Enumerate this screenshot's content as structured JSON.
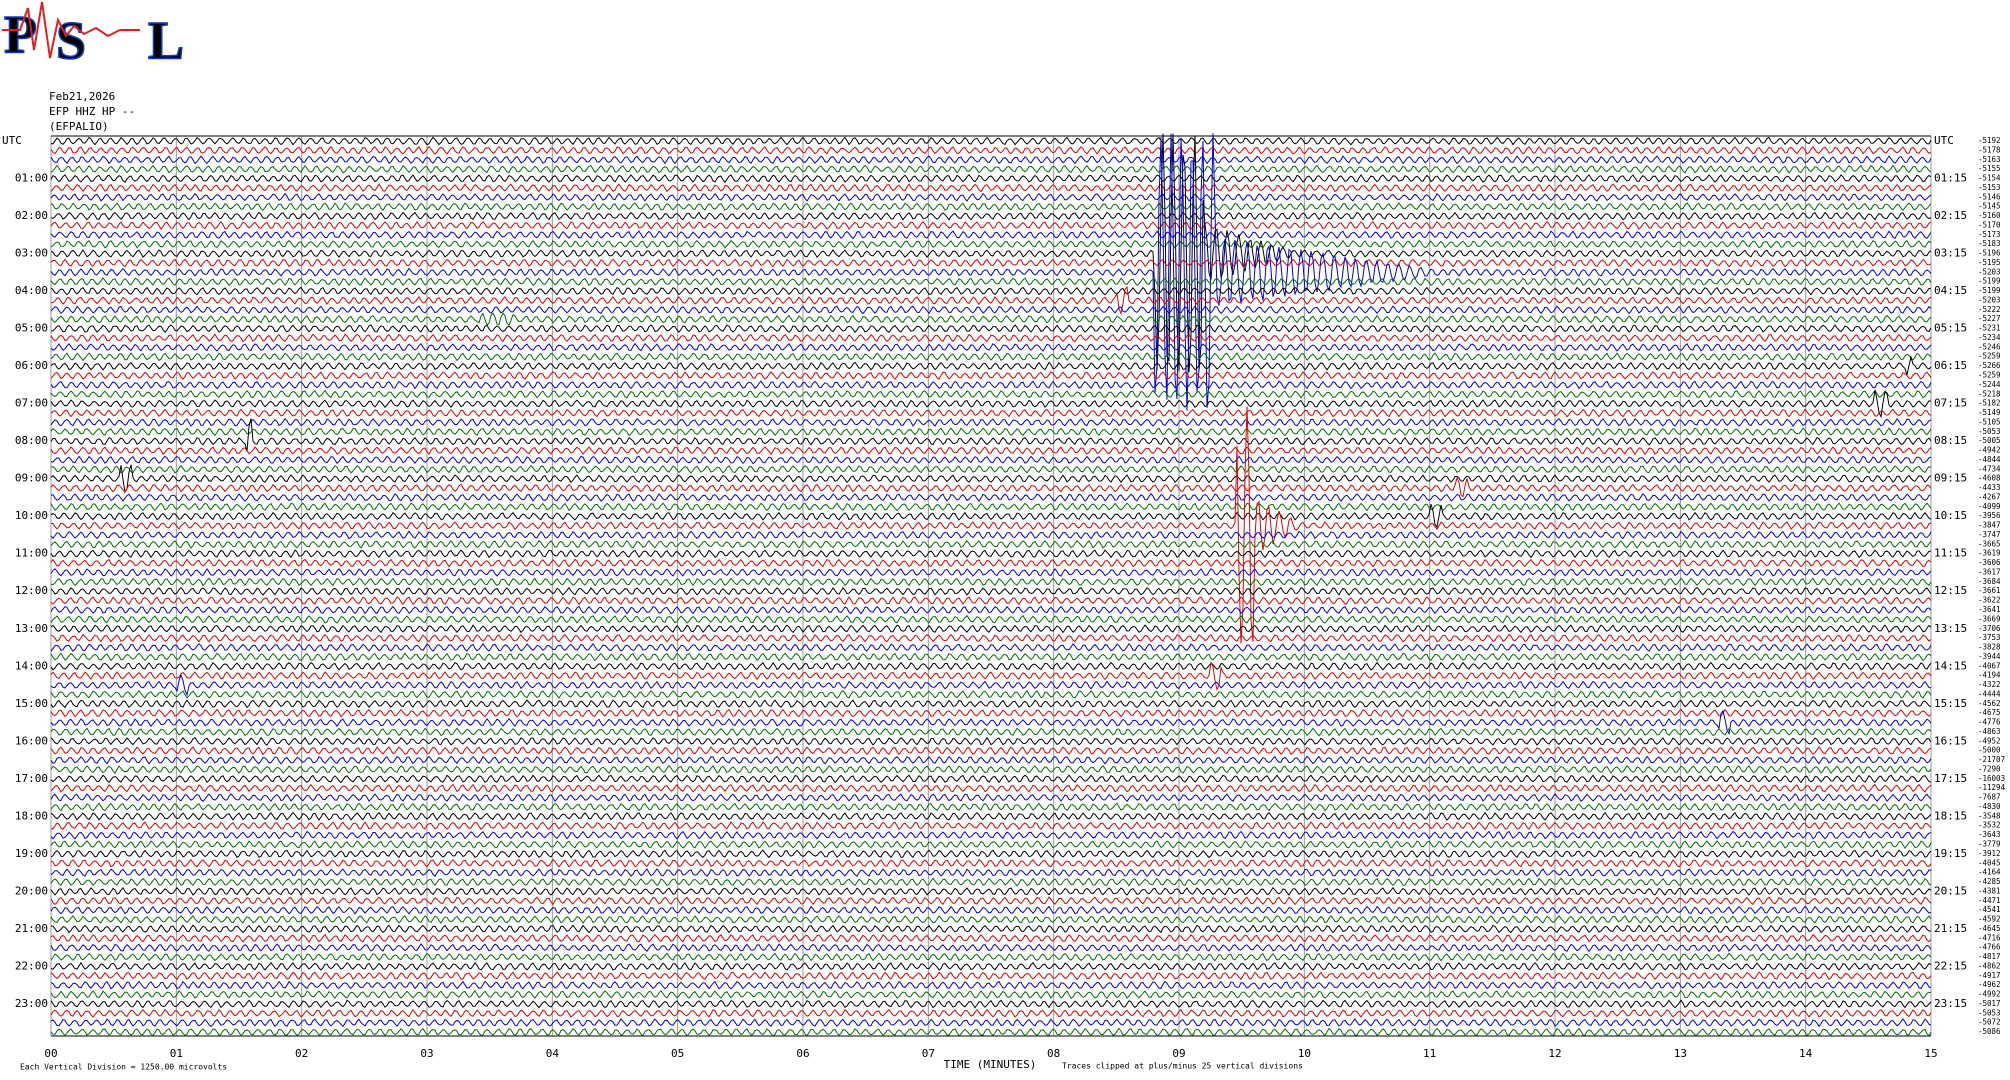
{
  "chart_data": {
    "type": "helicorder",
    "logo": {
      "letters": [
        "P",
        "S",
        "L"
      ]
    },
    "header": [
      "Feb21,2026",
      "EFP HHZ HP --",
      "(EFPALIO)"
    ],
    "trace_colors": [
      "#000000",
      "#e00000",
      "#0000e0",
      "#007000"
    ],
    "left_labels": [
      "UTC",
      "01:00",
      "02:00",
      "03:00",
      "04:00",
      "05:00",
      "06:00",
      "07:00",
      "08:00",
      "09:00",
      "10:00",
      "11:00",
      "12:00",
      "13:00",
      "14:00",
      "15:00",
      "16:00",
      "17:00",
      "18:00",
      "19:00",
      "20:00",
      "21:00",
      "22:00",
      "23:00"
    ],
    "right_labels": [
      "UTC",
      "01:15",
      "02:15",
      "03:15",
      "04:15",
      "05:15",
      "06:15",
      "07:15",
      "08:15",
      "09:15",
      "10:15",
      "11:15",
      "12:15",
      "13:15",
      "14:15",
      "15:15",
      "16:15",
      "17:15",
      "18:15",
      "19:15",
      "20:15",
      "21:15",
      "22:15",
      "23:15"
    ],
    "trace_offsets": [
      -5192,
      -5178,
      -5163,
      -5155,
      -5154,
      -5153,
      -5146,
      -5145,
      -5160,
      -5170,
      -5173,
      -5183,
      -5196,
      -5195,
      -5203,
      -5199,
      -5199,
      -5203,
      -5222,
      -5227,
      -5231,
      -5234,
      -5246,
      -5259,
      -5266,
      -5259,
      -5244,
      -5218,
      -5182,
      -5149,
      -5105,
      -5053,
      -5005,
      -4942,
      -4844,
      -4734,
      -4608,
      -4433,
      -4267,
      -4099,
      -3956,
      -3847,
      -3747,
      -3665,
      -3619,
      -3606,
      -3617,
      -3684,
      -3661,
      -3622,
      -3641,
      -3669,
      -3706,
      -3753,
      -3828,
      -3944,
      -4067,
      -4194,
      -4322,
      -4444,
      -4562,
      -4675,
      -4776,
      -4863,
      -4952,
      -5000,
      -21707,
      -7290,
      -16003,
      -11294,
      -7687,
      -4830,
      -3548,
      -3532,
      -3643,
      -3779,
      -3912,
      -4045,
      -4164,
      -4285,
      -4381,
      -4471,
      -4541,
      -4592,
      -4645,
      -4716,
      -4766,
      -4817,
      -4862,
      -4917,
      -4962,
      -4992,
      -5017,
      -5053,
      -5072,
      -5086
    ],
    "xlim": [
      0,
      15
    ],
    "xticks": [
      {
        "value": 0,
        "label": "00"
      },
      {
        "value": 1,
        "label": "01"
      },
      {
        "value": 2,
        "label": "02"
      },
      {
        "value": 3,
        "label": "03"
      },
      {
        "value": 4,
        "label": "04"
      },
      {
        "value": 5,
        "label": "05"
      },
      {
        "value": 6,
        "label": "06"
      },
      {
        "value": 7,
        "label": "07"
      },
      {
        "value": 8,
        "label": "08"
      },
      {
        "value": 9,
        "label": "09"
      },
      10,
      11,
      12,
      13,
      14,
      15
    ],
    "xlabel": "TIME (MINUTES)",
    "footer_left": "Each Vertical Division = 1250.00 microvolts",
    "footer_right": "Traces clipped at plus/minus 25 vertical divisions",
    "grid": true
  }
}
